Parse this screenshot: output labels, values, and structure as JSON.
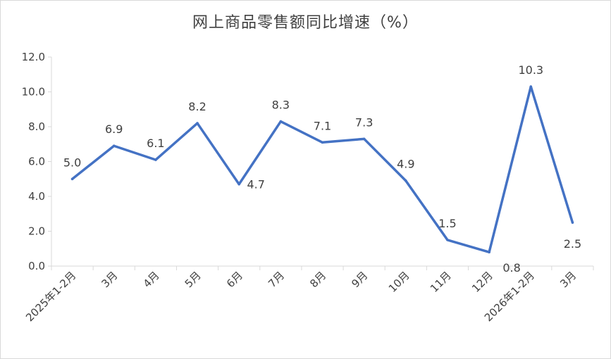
{
  "chart_data": {
    "type": "line",
    "title": "网上商品零售额同比增速（%）",
    "xlabel": "",
    "ylabel": "",
    "categories": [
      "2025年1-2月",
      "3月",
      "4月",
      "5月",
      "6月",
      "7月",
      "8月",
      "9月",
      "10月",
      "11月",
      "12月",
      "2026年1-2月",
      "3月"
    ],
    "series": [
      {
        "values": [
          5.0,
          6.9,
          6.1,
          8.2,
          4.7,
          8.3,
          7.1,
          7.3,
          4.9,
          1.5,
          0.8,
          10.3,
          2.5
        ]
      }
    ],
    "data_labels": [
      "5.0",
      "6.9",
      "6.1",
      "8.2",
      "4.7",
      "8.3",
      "7.1",
      "7.3",
      "4.9",
      "1.5",
      "0.8",
      "10.3",
      "2.5"
    ],
    "y_ticks": [
      "0.0",
      "2.0",
      "4.0",
      "6.0",
      "8.0",
      "10.0",
      "12.0"
    ],
    "ylim": [
      0,
      12
    ],
    "grid": false,
    "legend": "none",
    "line_color": "#4472c4"
  }
}
